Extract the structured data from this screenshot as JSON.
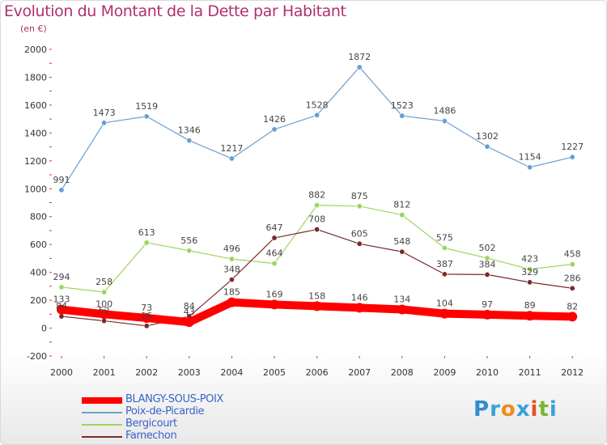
{
  "header": {
    "title": "Evolution du Montant de la Dette par Habitant",
    "subtitle": "(en €)"
  },
  "logo": {
    "text": "Proxiti",
    "letters": [
      "P",
      "r",
      "o",
      "x",
      "i",
      "t",
      "i"
    ],
    "colors": [
      "#2f8ccf",
      "#3aa0de",
      "#f08a1c",
      "#3aa0de",
      "#e4531b",
      "#7bb534",
      "#3aa0de"
    ]
  },
  "chart_data": {
    "type": "line",
    "x": [
      "2000",
      "2001",
      "2002",
      "2003",
      "2004",
      "2005",
      "2006",
      "2007",
      "2008",
      "2009",
      "2010",
      "2011",
      "2012"
    ],
    "ylim": [
      -200,
      2000
    ],
    "yticks": [
      -200,
      0,
      200,
      400,
      600,
      800,
      1000,
      1200,
      1400,
      1600,
      1800,
      2000
    ],
    "grid": false,
    "legend_position": "bottom-left",
    "series": [
      {
        "name": "BLANGY-SOUS-POIX",
        "color": "#ff0000",
        "values": [
          133,
          100,
          73,
          43,
          185,
          169,
          158,
          146,
          134,
          104,
          97,
          89,
          82
        ],
        "width": "thick"
      },
      {
        "name": "Poix-de-Picardie",
        "color": "#6a9fcf",
        "values": [
          991,
          1473,
          1519,
          1346,
          1217,
          1426,
          1528,
          1872,
          1523,
          1486,
          1302,
          1154,
          1227
        ],
        "width": "thin"
      },
      {
        "name": "Bergicourt",
        "color": "#9bd65f",
        "values": [
          294,
          258,
          613,
          556,
          496,
          464,
          882,
          875,
          812,
          575,
          502,
          423,
          458
        ],
        "width": "thin"
      },
      {
        "name": "Famechon",
        "color": "#7a2a2a",
        "values": [
          84,
          52,
          16,
          84,
          348,
          647,
          708,
          605,
          548,
          387,
          384,
          329,
          286
        ],
        "width": "thin"
      }
    ]
  }
}
